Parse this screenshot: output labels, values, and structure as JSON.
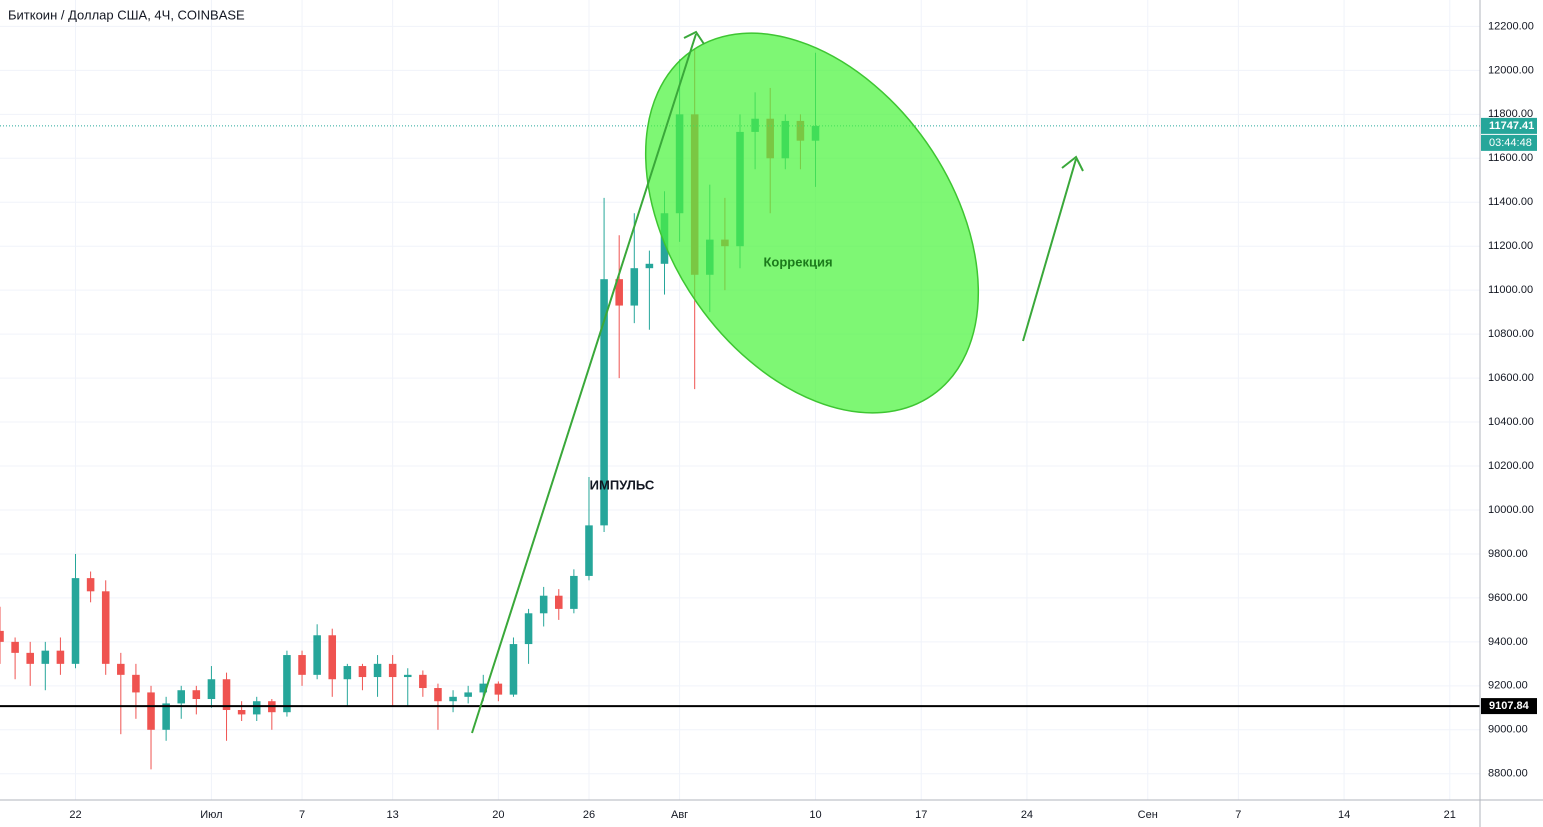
{
  "chart_data": {
    "type": "candlestick",
    "title": "Биткоин / Доллар США, 4Ч, COINBASE",
    "x": [
      "06-17",
      "06-18",
      "06-19",
      "06-20",
      "06-21",
      "06-22",
      "06-23",
      "06-24",
      "06-25",
      "06-26",
      "06-27",
      "06-28",
      "06-29",
      "06-30",
      "07-01",
      "07-02",
      "07-03",
      "07-04",
      "07-05",
      "07-06",
      "07-07",
      "07-08",
      "07-09",
      "07-10",
      "07-11",
      "07-12",
      "07-13",
      "07-14",
      "07-15",
      "07-16",
      "07-17",
      "07-18",
      "07-19",
      "07-20",
      "07-21",
      "07-22",
      "07-23",
      "07-24",
      "07-25",
      "07-26",
      "07-27",
      "07-28",
      "07-29",
      "07-30",
      "07-31",
      "08-01",
      "08-02",
      "08-03",
      "08-04",
      "08-05",
      "08-06",
      "08-07",
      "08-08",
      "08-09",
      "08-10"
    ],
    "open": [
      9450,
      9400,
      9350,
      9300,
      9360,
      9300,
      9690,
      9630,
      9300,
      9250,
      9170,
      9000,
      9120,
      9180,
      9140,
      9230,
      9090,
      9070,
      9130,
      9080,
      9340,
      9250,
      9430,
      9230,
      9290,
      9240,
      9300,
      9240,
      9250,
      9190,
      9130,
      9150,
      9170,
      9210,
      9160,
      9390,
      9530,
      9610,
      9550,
      9700,
      9930,
      11050,
      10930,
      11100,
      11120,
      11350,
      11800,
      11070,
      11230,
      11200,
      11720,
      11780,
      11600,
      11770,
      11680
    ],
    "high": [
      9560,
      9420,
      9400,
      9400,
      9420,
      9800,
      9720,
      9680,
      9350,
      9300,
      9200,
      9150,
      9200,
      9200,
      9290,
      9260,
      9130,
      9150,
      9140,
      9360,
      9360,
      9480,
      9460,
      9300,
      9300,
      9340,
      9340,
      9280,
      9270,
      9210,
      9180,
      9200,
      9250,
      9220,
      9420,
      9550,
      9650,
      9640,
      9730,
      10150,
      11420,
      11250,
      11350,
      11180,
      11450,
      12050,
      12100,
      11480,
      11420,
      11800,
      11900,
      11920,
      11800,
      11800,
      12080
    ],
    "low": [
      9300,
      9230,
      9200,
      9180,
      9250,
      9280,
      9580,
      9250,
      8980,
      9050,
      8820,
      8950,
      9050,
      9070,
      9100,
      8950,
      9040,
      9040,
      9000,
      9060,
      9200,
      9230,
      9150,
      9110,
      9180,
      9150,
      9110,
      9110,
      9150,
      9000,
      9080,
      9120,
      9130,
      9130,
      9150,
      9300,
      9470,
      9500,
      9530,
      9680,
      9900,
      10600,
      10850,
      10820,
      10980,
      11220,
      10550,
      10900,
      11000,
      11100,
      11550,
      11350,
      11550,
      11550,
      11470
    ],
    "close": [
      9400,
      9350,
      9300,
      9360,
      9300,
      9690,
      9630,
      9300,
      9250,
      9170,
      9000,
      9120,
      9180,
      9140,
      9230,
      9090,
      9070,
      9130,
      9080,
      9340,
      9250,
      9430,
      9230,
      9290,
      9240,
      9300,
      9240,
      9250,
      9190,
      9130,
      9150,
      9170,
      9210,
      9160,
      9390,
      9530,
      9610,
      9550,
      9700,
      9930,
      11050,
      10930,
      11100,
      11120,
      11350,
      11800,
      11070,
      11230,
      11200,
      11720,
      11780,
      11600,
      11770,
      11680,
      11747.41
    ],
    "up_color": "#26a69a",
    "down_color": "#ef5350",
    "xlim": [
      "06-17",
      "09-23"
    ],
    "xticks": [
      {
        "value": "06-22",
        "label": "22"
      },
      {
        "value": "07-01",
        "label": "Июл"
      },
      {
        "value": "07-07",
        "label": "7"
      },
      {
        "value": "07-13",
        "label": "13"
      },
      {
        "value": "07-20",
        "label": "20"
      },
      {
        "value": "07-26",
        "label": "26"
      },
      {
        "value": "08-01",
        "label": "Авг"
      },
      {
        "value": "08-10",
        "label": "10"
      },
      {
        "value": "08-17",
        "label": "17"
      },
      {
        "value": "08-24",
        "label": "24"
      },
      {
        "value": "09-01",
        "label": "Сен"
      },
      {
        "value": "09-07",
        "label": "7"
      },
      {
        "value": "09-14",
        "label": "14"
      },
      {
        "value": "09-21",
        "label": "21"
      }
    ],
    "ylim": [
      8680.6,
      12320.1
    ],
    "yticks": [
      {
        "value": 8800,
        "label": "8800.00"
      },
      {
        "value": 9000,
        "label": "9000.00"
      },
      {
        "value": 9200,
        "label": "9200.00"
      },
      {
        "value": 9400,
        "label": "9400.00"
      },
      {
        "value": 9600,
        "label": "9600.00"
      },
      {
        "value": 9800,
        "label": "9800.00"
      },
      {
        "value": 10000,
        "label": "10000.00"
      },
      {
        "value": 10200,
        "label": "10200.00"
      },
      {
        "value": 10400,
        "label": "10400.00"
      },
      {
        "value": 10600,
        "label": "10600.00"
      },
      {
        "value": 10800,
        "label": "10800.00"
      },
      {
        "value": 11000,
        "label": "11000.00"
      },
      {
        "value": 11200,
        "label": "11200.00"
      },
      {
        "value": 11400,
        "label": "11400.00"
      },
      {
        "value": 11600,
        "label": "11600.00"
      },
      {
        "value": 11800,
        "label": "11800.00"
      },
      {
        "value": 12000,
        "label": "12000.00"
      },
      {
        "value": 12200,
        "label": "12200.00"
      }
    ],
    "grid": true,
    "price_lines": [
      {
        "value": 11747.41,
        "color": "#26a69a",
        "countdown": "03:44:48"
      },
      {
        "value": 9107.84,
        "color": "#000000"
      }
    ],
    "annotations": [
      "ИМПУЛЬС",
      "Коррекция"
    ]
  }
}
